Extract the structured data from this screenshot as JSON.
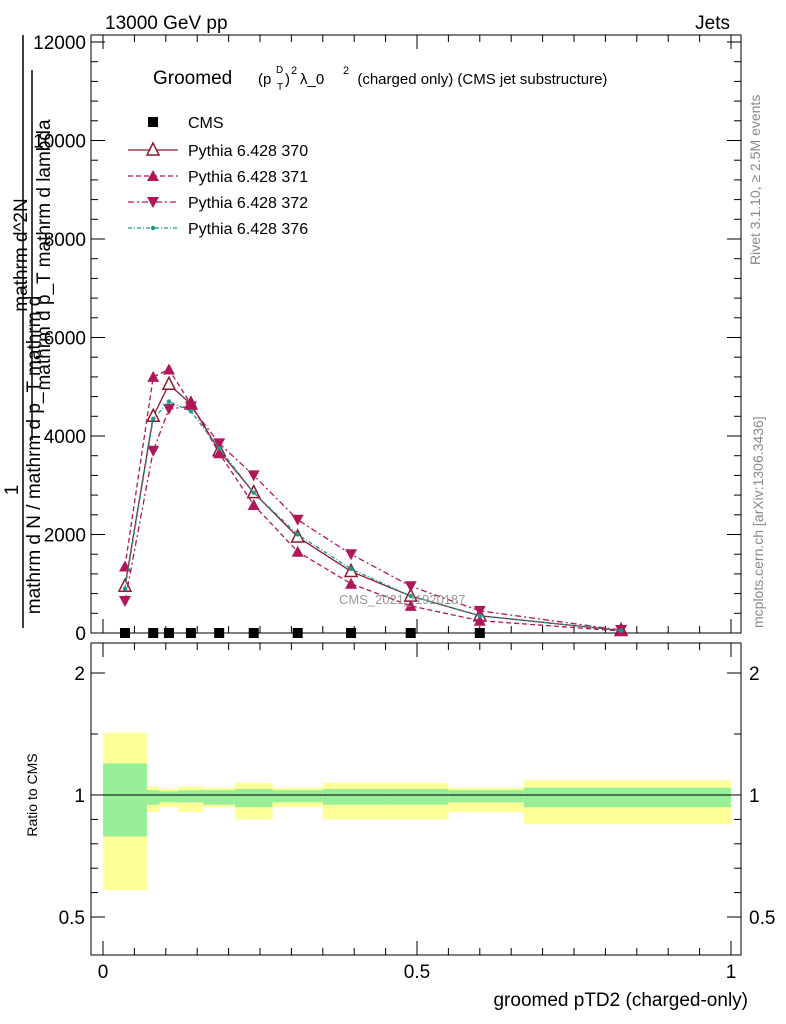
{
  "header": {
    "left": "13000 GeV pp",
    "right": "Jets"
  },
  "side": {
    "rivet": "Rivet 3.1.10, ≥ 2.5M events",
    "mcplots": "mcplots.cern.ch [arXiv:1306.3436]"
  },
  "colors": {
    "cms": "#000000",
    "p370": "#8b1a2b",
    "p371": "#b0175a",
    "p372": "#b0175a",
    "p376": "#1a9a8a",
    "band_inner": "#99ee99",
    "band_outer": "#ffff99"
  },
  "chart_data": [
    {
      "type": "line",
      "title": "Groomed (p_T^D)^2 λ_0^2  (charged only) (CMS jet substructure)",
      "title_main": "Groomed",
      "title_rest": "λ_0",
      "title_tail": "  (charged only) (CMS jet substructure)",
      "ylabel_line1": "mathrm d^2N",
      "ylabel_line2": "mathrm d p_T mathrm d lambda",
      "ylabel_prefix": "1",
      "ylabel_denom": "mathrm d N / mathrm d p_T mathrm d",
      "watermark": "CMS_2021_I1920187",
      "xlim": [
        0,
        1
      ],
      "ylim": [
        0,
        12000
      ],
      "y_ticks": [
        0,
        2000,
        4000,
        6000,
        8000,
        10000,
        12000
      ],
      "y_tick_labels": [
        "0",
        "2000",
        "4000",
        "6000",
        "8000",
        "10000",
        "12000"
      ],
      "legend_position": "top-left",
      "series": [
        {
          "name": "CMS",
          "marker": "square",
          "x": [
            0.035,
            0.08,
            0.105,
            0.14,
            0.185,
            0.24,
            0.31,
            0.395,
            0.49,
            0.6
          ],
          "y": [
            0,
            0,
            0,
            0,
            0,
            0,
            0,
            0,
            0,
            0
          ]
        },
        {
          "name": "Pythia 6.428 370",
          "marker": "triangle-open",
          "x": [
            0.035,
            0.08,
            0.105,
            0.14,
            0.185,
            0.24,
            0.31,
            0.395,
            0.49,
            0.6,
            0.825
          ],
          "y": [
            950,
            4400,
            5050,
            4650,
            3700,
            2850,
            1950,
            1250,
            750,
            350,
            50
          ]
        },
        {
          "name": "Pythia 6.428 371",
          "marker": "triangle-up",
          "x": [
            0.035,
            0.08,
            0.105,
            0.14,
            0.185,
            0.24,
            0.31,
            0.395,
            0.49,
            0.6,
            0.825
          ],
          "y": [
            1350,
            5200,
            5350,
            4650,
            3650,
            2600,
            1650,
            1000,
            550,
            250,
            40
          ]
        },
        {
          "name": "Pythia 6.428 372",
          "marker": "triangle-down",
          "x": [
            0.035,
            0.08,
            0.105,
            0.14,
            0.185,
            0.24,
            0.31,
            0.395,
            0.49,
            0.6,
            0.825
          ],
          "y": [
            650,
            3700,
            4550,
            4600,
            3850,
            3200,
            2300,
            1600,
            950,
            450,
            60
          ]
        },
        {
          "name": "Pythia 6.428 376",
          "marker": "dot",
          "x": [
            0.035,
            0.08,
            0.105,
            0.14,
            0.185,
            0.24,
            0.31,
            0.395,
            0.49,
            0.6,
            0.825
          ],
          "y": [
            900,
            4350,
            4700,
            4500,
            3750,
            2850,
            2000,
            1300,
            750,
            350,
            50
          ]
        }
      ]
    },
    {
      "type": "area",
      "ylabel": "Ratio to CMS",
      "xlabel": "groomed pTD2 (charged-only)",
      "xlim": [
        0,
        1
      ],
      "ylim": [
        0.35,
        2.3
      ],
      "x_ticks": [
        0,
        0.5,
        1
      ],
      "x_tick_labels": [
        "0",
        "0.5",
        "1"
      ],
      "y_ticks": [
        0.5,
        1,
        2
      ],
      "y_tick_labels": [
        "0.5",
        "1",
        "2"
      ],
      "bins": {
        "edges": [
          0,
          0.07,
          0.09,
          0.12,
          0.16,
          0.21,
          0.27,
          0.35,
          0.45,
          0.55,
          0.67,
          1.0
        ],
        "inner_low": [
          0.83,
          0.96,
          0.97,
          0.97,
          0.96,
          0.95,
          0.97,
          0.96,
          0.96,
          0.97,
          0.95
        ],
        "inner_high": [
          1.26,
          1.04,
          1.03,
          1.04,
          1.04,
          1.05,
          1.04,
          1.05,
          1.05,
          1.04,
          1.06
        ],
        "outer_low": [
          0.61,
          0.93,
          0.95,
          0.93,
          0.95,
          0.9,
          0.95,
          0.9,
          0.9,
          0.93,
          0.88
        ],
        "outer_high": [
          1.51,
          1.07,
          1.05,
          1.07,
          1.06,
          1.1,
          1.06,
          1.1,
          1.1,
          1.06,
          1.12
        ]
      }
    }
  ]
}
